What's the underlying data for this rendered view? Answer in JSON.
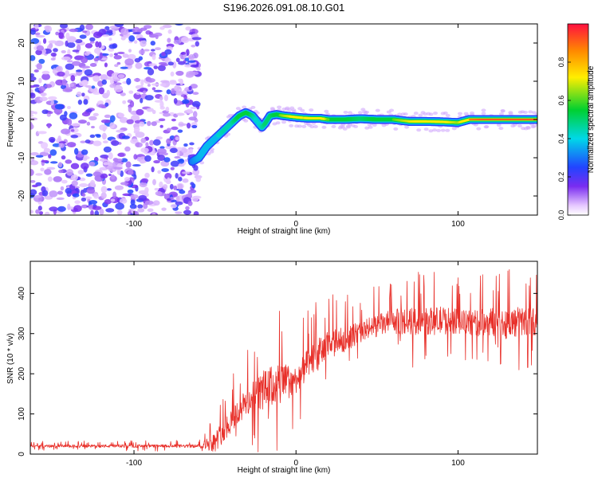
{
  "figure": {
    "title": "S196.2026.091.08.10.G01"
  },
  "chart_data": [
    {
      "type": "heatmap",
      "title": "S196.2026.091.08.10.G01",
      "xlabel": "Height of straight line (km)",
      "ylabel": "Frequency (Hz)",
      "xlim": [
        -164,
        149
      ],
      "ylim": [
        -25,
        25
      ],
      "xticks": [
        -100,
        0,
        100
      ],
      "xtick_labels": [
        "-100",
        "0",
        "100"
      ],
      "yticks": [
        -20,
        -10,
        0,
        10,
        20
      ],
      "ytick_labels": [
        "-20",
        "-10",
        "0",
        "10",
        "20"
      ],
      "colorbar": {
        "label": "Normalized spectral amplitude",
        "range": [
          0,
          1
        ],
        "ticks": [
          0.0,
          0.2,
          0.4,
          0.6,
          0.8
        ],
        "tick_labels": [
          "0.0",
          "0.2",
          "0.4",
          "0.6",
          "0.8"
        ]
      },
      "noise_region_x": [
        -164,
        -60
      ],
      "ridge": {
        "x": [
          -64,
          -60,
          -55,
          -50,
          -45,
          -40,
          -35,
          -31,
          -27,
          -24,
          -21,
          -19,
          -16,
          -12,
          -8,
          -4,
          0,
          5,
          10,
          15,
          20,
          30,
          40,
          50,
          60,
          70,
          80,
          90,
          100,
          107,
          115,
          125,
          135,
          149
        ],
        "frequency": [
          -11,
          -10,
          -7,
          -5,
          -3,
          -1,
          1,
          1.8,
          1,
          -0.5,
          -2,
          -1,
          1,
          1.3,
          1,
          0.8,
          0.6,
          0.4,
          0.3,
          0.3,
          0,
          0,
          0.2,
          0,
          0,
          -0.5,
          -0.5,
          -0.6,
          -0.8,
          0,
          0,
          0,
          0,
          0
        ],
        "amplitude": [
          0.3,
          0.35,
          0.4,
          0.4,
          0.45,
          0.45,
          0.55,
          0.6,
          0.5,
          0.4,
          0.45,
          0.5,
          0.5,
          0.55,
          0.65,
          0.7,
          0.85,
          0.7,
          0.8,
          0.85,
          0.6,
          0.55,
          0.5,
          0.55,
          0.6,
          0.7,
          0.75,
          0.75,
          0.65,
          0.9,
          0.95,
          0.95,
          0.95,
          0.95
        ]
      }
    },
    {
      "type": "line",
      "xlabel": "Height of straight line (km)",
      "ylabel": "SNR (10 * v/v)",
      "xlim": [
        -164,
        149
      ],
      "ylim": [
        0,
        480
      ],
      "xticks": [
        -100,
        0,
        100
      ],
      "xtick_labels": [
        "-100",
        "0",
        "100"
      ],
      "yticks": [
        0,
        100,
        200,
        300,
        400
      ],
      "ytick_labels": [
        "0",
        "100",
        "200",
        "300",
        "400"
      ],
      "series": [
        {
          "name": "SNR",
          "color": "#e8302a",
          "envelope_x": [
            -164,
            -60,
            -50,
            -40,
            -30,
            -20,
            -10,
            0,
            10,
            20,
            30,
            40,
            50,
            60,
            70,
            80,
            90,
            100,
            110,
            120,
            130,
            140,
            149
          ],
          "envelope_base": [
            20,
            20,
            30,
            85,
            130,
            160,
            175,
            185,
            235,
            270,
            285,
            305,
            320,
            330,
            330,
            330,
            333,
            330,
            325,
            330,
            325,
            330,
            330
          ],
          "envelope_spikes": [
            12,
            15,
            90,
            120,
            130,
            180,
            200,
            120,
            150,
            140,
            110,
            100,
            100,
            110,
            130,
            120,
            130,
            110,
            120,
            130,
            140,
            140,
            120
          ]
        }
      ]
    }
  ]
}
